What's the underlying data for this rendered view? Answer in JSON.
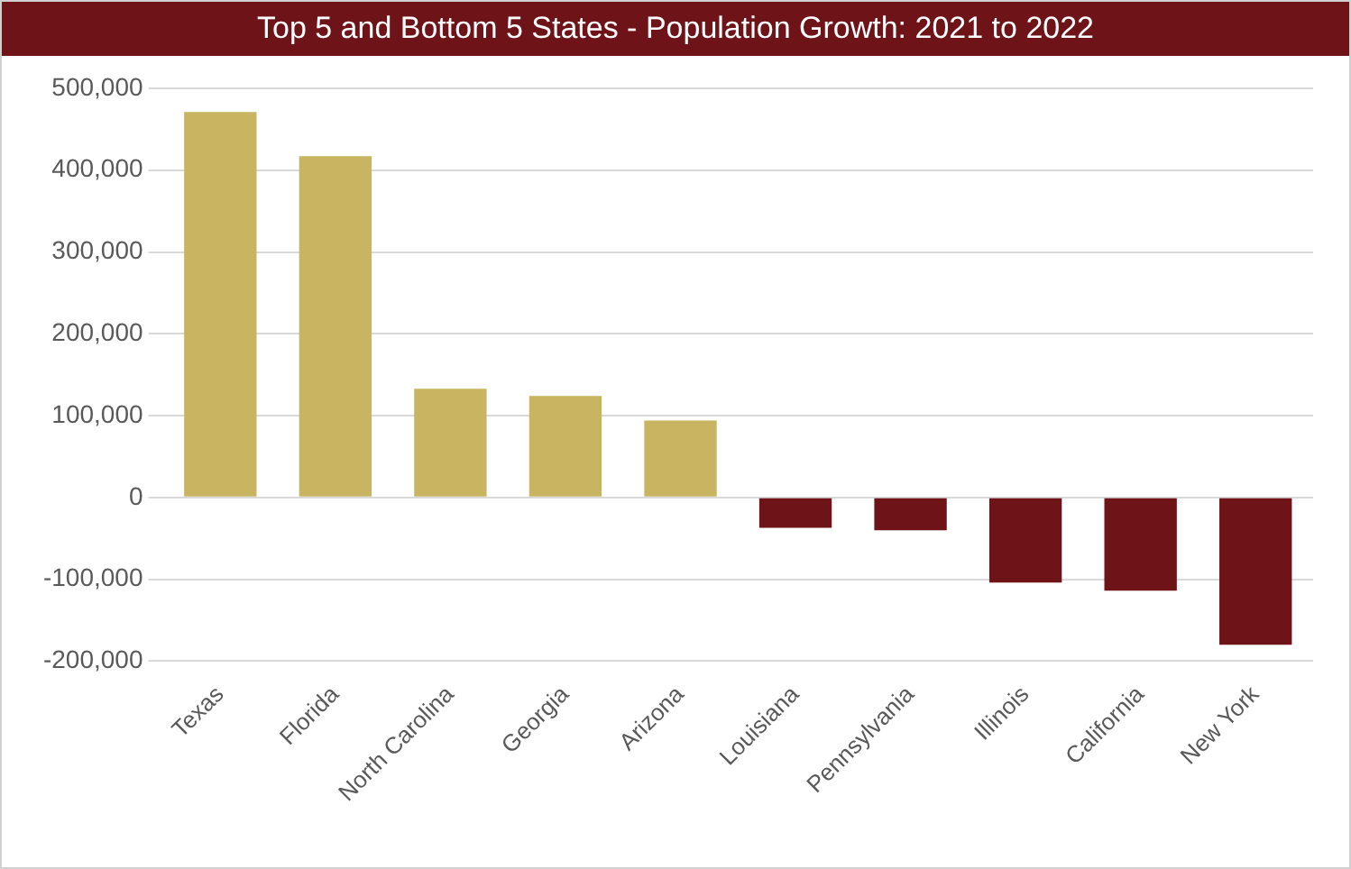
{
  "chart_data": {
    "type": "bar",
    "title": "Top 5 and Bottom 5 States - Population Growth: 2021 to 2022",
    "categories": [
      "Texas",
      "Florida",
      "North Carolina",
      "Georgia",
      "Arizona",
      "Louisiana",
      "Pennsylvania",
      "Illinois",
      "California",
      "New York"
    ],
    "values": [
      471000,
      417000,
      133000,
      124000,
      94000,
      -37000,
      -40000,
      -104000,
      -114000,
      -180000
    ],
    "colors": [
      "#c9b461",
      "#c9b461",
      "#c9b461",
      "#c9b461",
      "#c9b461",
      "#6e1419",
      "#6e1419",
      "#6e1419",
      "#6e1419",
      "#6e1419"
    ],
    "ylim": [
      -200000,
      500000
    ],
    "yticks": [
      {
        "value": -200000,
        "label": "-200,000"
      },
      {
        "value": -100000,
        "label": "-100,000"
      },
      0,
      {
        "value": 100000,
        "label": "100,000"
      },
      {
        "value": 200000,
        "label": "200,000"
      },
      {
        "value": 300000,
        "label": "300,000"
      },
      {
        "value": 400000,
        "label": "400,000"
      },
      {
        "value": 500000,
        "label": "500,000"
      }
    ],
    "grid": "y",
    "legend": false
  }
}
